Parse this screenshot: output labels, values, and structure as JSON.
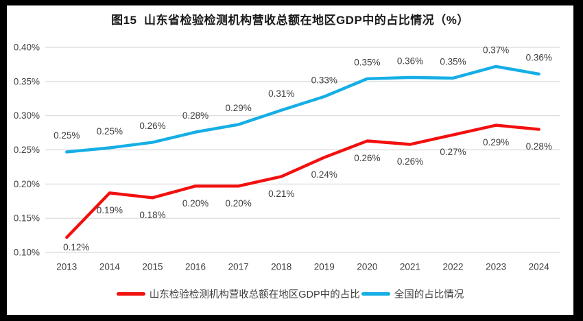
{
  "frame": {
    "border_color": "#000000",
    "background": "#ffffff"
  },
  "colors": {
    "grid": "#d9d9d9",
    "axis_text": "#404040",
    "data_label": "#3d3d3d",
    "title_text": "#1a1a1a"
  },
  "chart_data": {
    "type": "line",
    "title": "图15  山东省检验检测机构营收总额在地区GDP中的占比情况（%）",
    "xlabel": "",
    "ylabel": "",
    "categories": [
      "2013",
      "2014",
      "2015",
      "2016",
      "2017",
      "2018",
      "2019",
      "2020",
      "2021",
      "2022",
      "2023",
      "2024"
    ],
    "y_ticks": [
      "0.10%",
      "0.15%",
      "0.20%",
      "0.25%",
      "0.30%",
      "0.35%",
      "0.40%"
    ],
    "ylim": [
      0.1,
      0.4
    ],
    "grid": true,
    "legend_position": "bottom",
    "series": [
      {
        "name": "山东检验检测机构营收总额在地区GDP中的占比",
        "color": "#f2100f",
        "label_position": "below",
        "values": [
          0.12,
          0.19,
          0.18,
          0.2,
          0.2,
          0.21,
          0.24,
          0.26,
          0.26,
          0.27,
          0.29,
          0.28
        ],
        "labels": [
          "0.12%",
          "0.19%",
          "0.18%",
          "0.20%",
          "0.20%",
          "0.21%",
          "0.24%",
          "0.26%",
          "0.26%",
          "0.27%",
          "0.29%",
          "0.28%"
        ],
        "plot_values": [
          0.122,
          0.187,
          0.18,
          0.197,
          0.197,
          0.211,
          0.239,
          0.263,
          0.258,
          0.272,
          0.286,
          0.28
        ]
      },
      {
        "name": "全国的占比情况",
        "color": "#15aee5",
        "label_position": "above",
        "values": [
          0.25,
          0.25,
          0.26,
          0.28,
          0.29,
          0.31,
          0.33,
          0.35,
          0.36,
          0.35,
          0.37,
          0.36
        ],
        "labels": [
          "0.25%",
          "0.25%",
          "0.26%",
          "0.28%",
          "0.29%",
          "0.31%",
          "0.33%",
          "0.35%",
          "0.36%",
          "0.35%",
          "0.37%",
          "0.36%"
        ],
        "plot_values": [
          0.247,
          0.253,
          0.261,
          0.276,
          0.287,
          0.308,
          0.328,
          0.354,
          0.356,
          0.355,
          0.372,
          0.361
        ]
      }
    ]
  }
}
